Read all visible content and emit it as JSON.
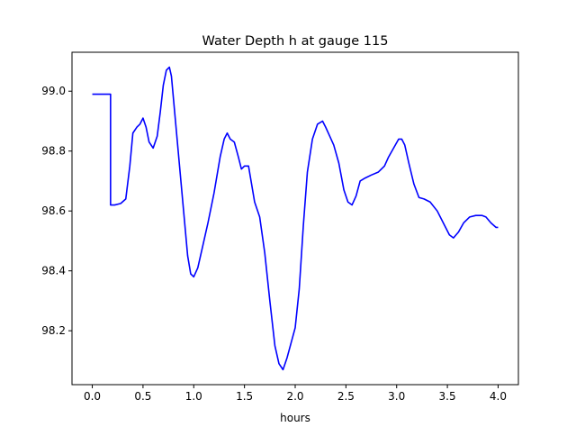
{
  "chart_data": {
    "type": "line",
    "title": "Water Depth h at gauge 115",
    "xlabel": "hours",
    "ylabel": "",
    "xlim": [
      -0.2,
      4.2
    ],
    "ylim": [
      98.02,
      99.13
    ],
    "x_ticks": [
      0.0,
      0.5,
      1.0,
      1.5,
      2.0,
      2.5,
      3.0,
      3.5,
      4.0
    ],
    "x_tick_labels": [
      "0.0",
      "0.5",
      "1.0",
      "1.5",
      "2.0",
      "2.5",
      "3.0",
      "3.5",
      "4.0"
    ],
    "y_ticks": [
      98.2,
      98.4,
      98.6,
      98.8,
      99.0
    ],
    "y_tick_labels": [
      "98.2",
      "98.4",
      "98.6",
      "98.8",
      "99.0"
    ],
    "grid": false,
    "series": [
      {
        "color": "#0000ff",
        "x": [
          0.0,
          0.1,
          0.18,
          0.18,
          0.22,
          0.28,
          0.33,
          0.37,
          0.4,
          0.44,
          0.47,
          0.5,
          0.53,
          0.56,
          0.6,
          0.64,
          0.67,
          0.7,
          0.73,
          0.76,
          0.78,
          0.82,
          0.86,
          0.9,
          0.94,
          0.97,
          1.0,
          1.04,
          1.08,
          1.14,
          1.2,
          1.26,
          1.3,
          1.33,
          1.36,
          1.4,
          1.44,
          1.47,
          1.5,
          1.54,
          1.57,
          1.6,
          1.65,
          1.7,
          1.75,
          1.8,
          1.84,
          1.88,
          1.92,
          1.96,
          2.0,
          2.04,
          2.08,
          2.12,
          2.17,
          2.22,
          2.27,
          2.3,
          2.34,
          2.38,
          2.43,
          2.48,
          2.52,
          2.56,
          2.6,
          2.64,
          2.69,
          2.75,
          2.82,
          2.88,
          2.92,
          2.97,
          3.02,
          3.05,
          3.08,
          3.12,
          3.17,
          3.22,
          3.27,
          3.33,
          3.4,
          3.46,
          3.52,
          3.56,
          3.61,
          3.66,
          3.72,
          3.78,
          3.84,
          3.88,
          3.93,
          3.98,
          4.0
        ],
        "y": [
          98.99,
          98.99,
          98.99,
          98.62,
          98.62,
          98.625,
          98.64,
          98.75,
          98.86,
          98.88,
          98.89,
          98.91,
          98.88,
          98.83,
          98.81,
          98.85,
          98.93,
          99.02,
          99.07,
          99.08,
          99.05,
          98.9,
          98.75,
          98.6,
          98.45,
          98.39,
          98.38,
          98.41,
          98.47,
          98.56,
          98.66,
          98.78,
          98.84,
          98.86,
          98.84,
          98.83,
          98.78,
          98.74,
          98.75,
          98.75,
          98.69,
          98.63,
          98.58,
          98.46,
          98.3,
          98.15,
          98.09,
          98.07,
          98.11,
          98.16,
          98.21,
          98.34,
          98.55,
          98.73,
          98.84,
          98.89,
          98.9,
          98.88,
          98.85,
          98.82,
          98.76,
          98.67,
          98.63,
          98.62,
          98.65,
          98.7,
          98.71,
          98.72,
          98.73,
          98.75,
          98.78,
          98.81,
          98.84,
          98.84,
          98.82,
          98.76,
          98.69,
          98.645,
          98.64,
          98.63,
          98.6,
          98.56,
          98.52,
          98.51,
          98.53,
          98.56,
          98.58,
          98.585,
          98.585,
          98.58,
          98.56,
          98.545,
          98.545
        ]
      }
    ]
  }
}
